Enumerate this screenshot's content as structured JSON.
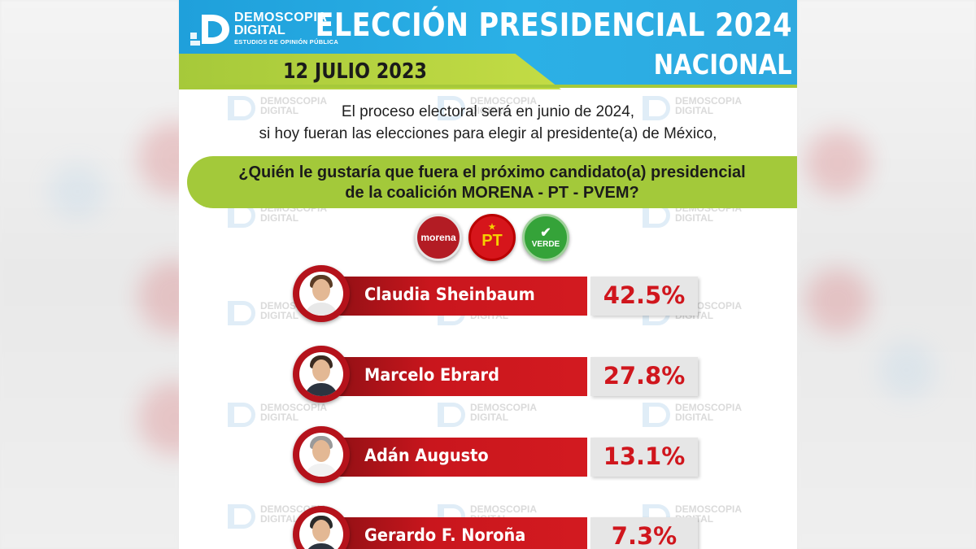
{
  "brand": {
    "line1": "DEMOSCOPIA",
    "line2": "DIGITAL",
    "tagline": "ESTUDIOS DE OPINIÓN PÚBLICA"
  },
  "header": {
    "title": "ELECCIÓN PRESIDENCIAL 2024",
    "subtitle": "NACIONAL",
    "date": "12 JULIO 2023"
  },
  "intro": {
    "line1": "El proceso electoral será en junio de 2024,",
    "line2": "si hoy fueran las elecciones para elegir al presidente(a) de México,"
  },
  "question": {
    "line1": "¿Quién le gustaría que fuera el próximo candidato(a) presidencial",
    "line2": "de la coalición MORENA - PT - PVEM?"
  },
  "parties": [
    {
      "label": "morena",
      "color": "#b31c24"
    },
    {
      "label": "PT",
      "color": "#d6151b"
    },
    {
      "label": "VERDE",
      "color": "#35a339"
    }
  ],
  "candidates": [
    {
      "name": "Claudia Sheinbaum",
      "percent": "42.5%"
    },
    {
      "name": "Marcelo Ebrard",
      "percent": "27.8%"
    },
    {
      "name": "Adán Augusto",
      "percent": "13.1%"
    },
    {
      "name": "Gerardo F. Noroña",
      "percent": "7.3%"
    }
  ],
  "colors": {
    "header_blue": "#1fa0db",
    "accent_green": "#a3c93a",
    "bar_red": "#c9161d"
  }
}
